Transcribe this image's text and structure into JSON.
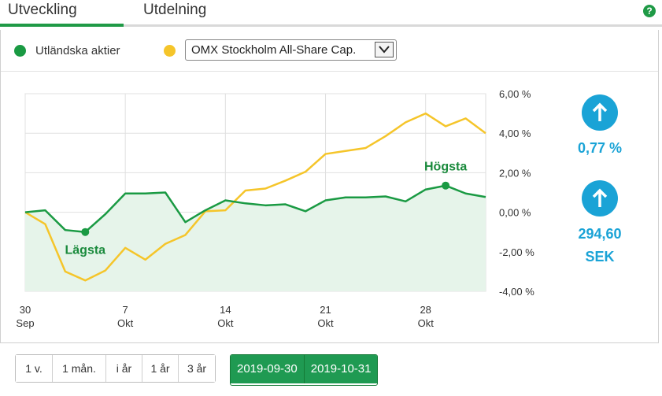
{
  "tabs": {
    "development": "Utveckling",
    "distribution": "Utdelning"
  },
  "help_icon": "question-icon",
  "legend": {
    "series1": "Utländska aktier",
    "compare_select": "OMX Stockholm All-Share Cap."
  },
  "colors": {
    "green": "#1a9a43",
    "yellow": "#f5c52a",
    "blue": "#1aa3d6",
    "fill": "#e6f4ea"
  },
  "indicators": {
    "change_percent": "0,77 %",
    "value": "294,60",
    "currency": "SEK"
  },
  "range_buttons": [
    "1 v.",
    "1 mån.",
    "i år",
    "1 år",
    "3 år"
  ],
  "date_range": {
    "from": "2019-09-30",
    "to": "2019-10-31"
  },
  "chart_data": {
    "type": "line",
    "x": [
      "2019-09-30",
      "2019-10-01",
      "2019-10-02",
      "2019-10-03",
      "2019-10-04",
      "2019-10-07",
      "2019-10-08",
      "2019-10-09",
      "2019-10-10",
      "2019-10-11",
      "2019-10-14",
      "2019-10-15",
      "2019-10-16",
      "2019-10-17",
      "2019-10-18",
      "2019-10-21",
      "2019-10-22",
      "2019-10-23",
      "2019-10-24",
      "2019-10-25",
      "2019-10-28",
      "2019-10-29",
      "2019-10-30",
      "2019-10-31"
    ],
    "x_ticks": [
      {
        "day": "30",
        "month": "Sep",
        "index": 0
      },
      {
        "day": "7",
        "month": "Okt",
        "index": 5
      },
      {
        "day": "14",
        "month": "Okt",
        "index": 10
      },
      {
        "day": "21",
        "month": "Okt",
        "index": 15
      },
      {
        "day": "28",
        "month": "Okt",
        "index": 20
      }
    ],
    "y_ticks": [
      "6,00 %",
      "4,00 %",
      "2,00 %",
      "0,00 %",
      "-2,00 %",
      "-4,00 %"
    ],
    "y_tick_values": [
      6,
      4,
      2,
      0,
      -2,
      -4
    ],
    "ylim": [
      -4,
      6
    ],
    "series": [
      {
        "values": [
          0.0,
          0.1,
          -0.9,
          -1.0,
          -0.1,
          0.95,
          0.95,
          1.0,
          -0.5,
          0.1,
          0.6,
          0.45,
          0.35,
          0.4,
          0.05,
          0.6,
          0.75,
          0.75,
          0.8,
          0.55,
          1.15,
          1.35,
          0.95,
          0.77
        ],
        "color": "#1a9a43",
        "filled": true
      },
      {
        "values": [
          0.0,
          -0.6,
          -3.0,
          -3.45,
          -2.95,
          -1.8,
          -2.4,
          -1.6,
          -1.15,
          0.05,
          0.1,
          1.1,
          1.2,
          1.6,
          2.05,
          2.95,
          3.1,
          3.25,
          3.85,
          4.55,
          5.0,
          4.35,
          4.75,
          4.0
        ],
        "color": "#f5c52a",
        "filled": false
      }
    ],
    "annotations": [
      {
        "text": "Lägsta",
        "index": 3,
        "value": -1.0,
        "series": 0,
        "position": "below"
      },
      {
        "text": "Högsta",
        "index": 21,
        "value": 1.35,
        "series": 0,
        "position": "above"
      }
    ],
    "grid": true
  }
}
